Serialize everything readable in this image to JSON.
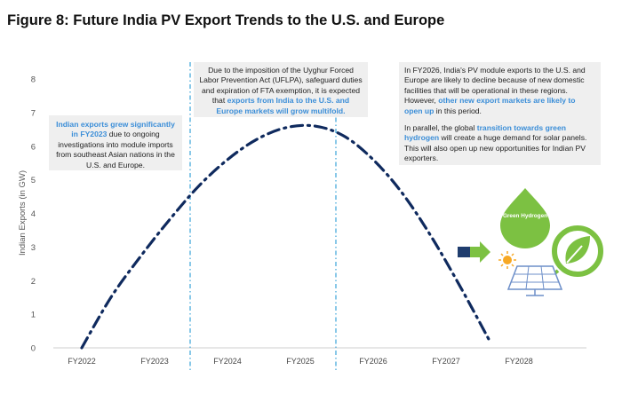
{
  "title": "Figure 8: Future India PV Export Trends to the U.S. and Europe",
  "chart_data": {
    "type": "line",
    "categories": [
      "FY2022",
      "FY2023",
      "FY2024",
      "FY2025",
      "FY2026",
      "FY2027",
      "FY2028"
    ],
    "ylabel": "Indian Exports (in GW)",
    "xlabel": "",
    "ylim": [
      0,
      8
    ],
    "yticks": [
      0,
      1,
      2,
      3,
      4,
      5,
      6,
      7,
      8
    ],
    "grid": false,
    "line_style": "dash-dot",
    "line_color": "#0f2a5e",
    "series": [
      {
        "x": [
          0.0,
          0.4,
          0.8,
          1.2,
          1.6,
          2.0,
          2.4,
          2.8,
          3.2,
          3.6,
          4.0,
          4.4,
          4.8,
          5.2,
          5.6
        ],
        "values": [
          0.0,
          1.5,
          2.7,
          3.8,
          4.8,
          5.6,
          6.2,
          6.55,
          6.6,
          6.3,
          5.6,
          4.6,
          3.3,
          1.8,
          0.2
        ]
      }
    ],
    "dividers_after": [
      "FY2023",
      "FY2025"
    ],
    "divider_color": "#3aa3d8"
  },
  "annotations": {
    "note1": {
      "highlight": "Indian exports grew significantly in FY2023",
      "text": " due to ongoing investigations into module imports from southeast Asian nations in the U.S. and Europe."
    },
    "note2": {
      "text": "Due to the imposition of the Uyghur Forced Labor Prevention Act (UFLPA), safeguard duties and expiration of FTA exemption, it is expected that ",
      "highlight": "exports from India to the U.S. and Europe markets will grow multifold."
    },
    "note3": {
      "p1_text": "In FY2026, India's PV module exports to the U.S. and Europe are likely to decline because of new domestic facilities that will be operational in these regions. However, ",
      "p1_highlight": "other new export markets are likely to open up",
      "p1_tail": " in this period.",
      "p2_text": "In parallel, the global ",
      "p2_highlight": "transition towards green hydrogen",
      "p2_tail": " will create a huge demand for solar panels. This will also open up new opportunities for Indian PV exporters."
    }
  },
  "illustration": {
    "droplet_label": "Green Hydrogen",
    "icons": [
      "green-hydrogen-droplet-icon",
      "sun-icon",
      "solar-panel-icon",
      "arrow-right-icon",
      "leaf-plug-icon"
    ],
    "colors": {
      "green": "#7cc142",
      "navy": "#1f3d6e",
      "sun": "#f7a823",
      "panel": "#6d8fc9"
    }
  }
}
